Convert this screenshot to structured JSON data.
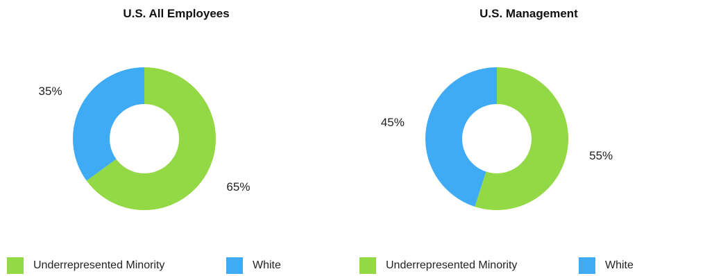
{
  "colors": {
    "underrepresented_minority": "#93D945",
    "white": "#3EABF4"
  },
  "chart_data": [
    {
      "type": "pie",
      "style": "donut",
      "title": "U.S. All Employees",
      "categories": [
        "Underrepresented Minority",
        "White"
      ],
      "values": [
        65,
        35
      ],
      "value_labels": [
        "65%",
        "35%"
      ],
      "legend_position": "bottom"
    },
    {
      "type": "pie",
      "style": "donut",
      "title": "U.S. Management",
      "categories": [
        "Underrepresented Minority",
        "White"
      ],
      "values": [
        55,
        45
      ],
      "value_labels": [
        "55%",
        "45%"
      ],
      "legend_position": "bottom"
    }
  ]
}
